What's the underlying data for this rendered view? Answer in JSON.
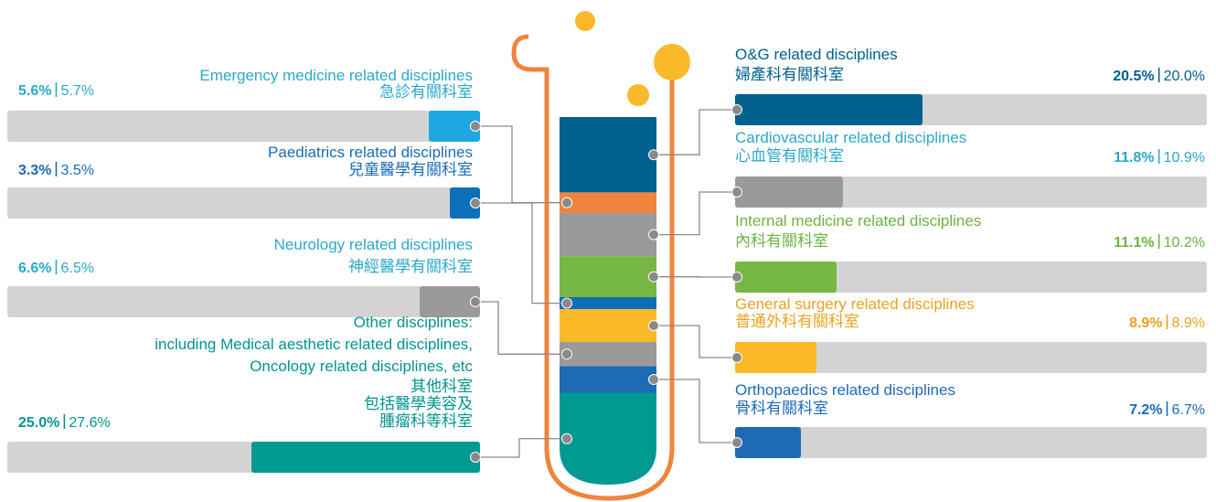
{
  "chart_data": {
    "type": "tube",
    "left": [
      {
        "name": [
          "Emergency medicine related disciplines"
        ],
        "name_zh": [
          "急診有關科室"
        ],
        "values": [
          5.6,
          5.7
        ],
        "value_labels": [
          "5.6%",
          "5.7%"
        ],
        "color": "#1fa7e1",
        "tube_color": "#f0843e",
        "text_color": "#2aa9c8"
      },
      {
        "name": [
          "Paediatrics related disciplines"
        ],
        "name_zh": [
          "兒童醫學有關科室"
        ],
        "values": [
          3.3,
          3.5
        ],
        "value_labels": [
          "3.3%",
          "3.5%"
        ],
        "color": "#0d6fb8",
        "tube_color": "#0d6fb8",
        "text_color": "#1a6db4"
      },
      {
        "name": [
          "Neurology related disciplines"
        ],
        "name_zh": [
          "神經醫學有關科室"
        ],
        "values": [
          6.6,
          6.5
        ],
        "value_labels": [
          "6.6%",
          "6.5%"
        ],
        "color": "#9a9a9a",
        "tube_color": "#9a9a9a",
        "text_color": "#2aa9c8"
      },
      {
        "name": [
          "Other disciplines:",
          "including Medical aesthetic related disciplines,",
          "Oncology related disciplines, etc"
        ],
        "name_zh": [
          "其他科室",
          "包括醫學美容及",
          "腫瘤科等科室"
        ],
        "values": [
          25.0,
          27.6
        ],
        "value_labels": [
          "25.0%",
          "27.6%"
        ],
        "color": "#009a93",
        "tube_color": "#009a93",
        "text_color": "#00958f"
      }
    ],
    "right": [
      {
        "name": [
          "O&G related disciplines"
        ],
        "name_zh": [
          "婦產科有關科室"
        ],
        "values": [
          20.5,
          20.0
        ],
        "value_labels": [
          "20.5%",
          "20.0%"
        ],
        "color": "#00608e",
        "tube_color": "#00608e",
        "text_color": "#00608e"
      },
      {
        "name": [
          "Cardiovascular related disciplines"
        ],
        "name_zh": [
          "心血管有關科室"
        ],
        "values": [
          11.8,
          10.9
        ],
        "value_labels": [
          "11.8%",
          "10.9%"
        ],
        "color": "#9a9a9a",
        "tube_color": "#9a9a9a",
        "text_color": "#2aa9c8"
      },
      {
        "name": [
          "Internal medicine related disciplines"
        ],
        "name_zh": [
          "內科有關科室"
        ],
        "values": [
          11.1,
          10.2
        ],
        "value_labels": [
          "11.1%",
          "10.2%"
        ],
        "color": "#76b843",
        "tube_color": "#76b843",
        "text_color": "#6cb33f"
      },
      {
        "name": [
          "General surgery related disciplines"
        ],
        "name_zh": [
          "普通外科有關科室"
        ],
        "values": [
          8.9,
          8.9
        ],
        "value_labels": [
          "8.9%",
          "8.9%"
        ],
        "color": "#fbb829",
        "tube_color": "#fbb829",
        "text_color": "#e9a21f"
      },
      {
        "name": [
          "Orthopaedics related disciplines"
        ],
        "name_zh": [
          "骨科有關科室"
        ],
        "values": [
          7.2,
          6.7
        ],
        "value_labels": [
          "7.2%",
          "6.7%"
        ],
        "color": "#1d6ab5",
        "tube_color": "#1d6ab5",
        "text_color": "#1d6ab5"
      }
    ]
  }
}
